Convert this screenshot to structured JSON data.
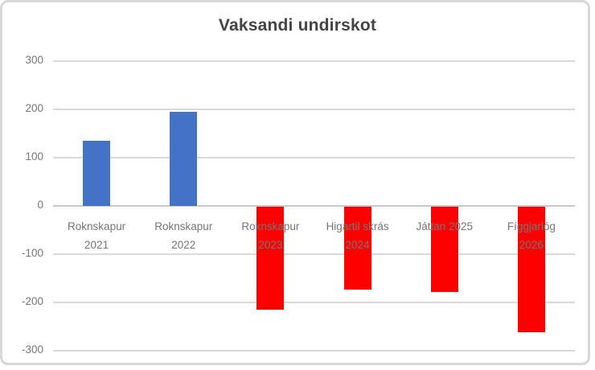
{
  "title": "Vaksandi undirskot",
  "colors": {
    "positive_bar": "#4472C4",
    "negative_bar": "#FF0000",
    "gridline": "#D9D9D9",
    "zero_axis": "#C8C8C8",
    "tick_text": "#757575",
    "title_text": "#444444",
    "frame_border": "#D7D7D7"
  },
  "chart_data": {
    "type": "bar",
    "title": "Vaksandi undirskot",
    "categories": [
      "Roknskapur 2021",
      "Roknskapur 2022",
      "Roknskapur 2023",
      "Higartil skrás 2024",
      "Játtan 2025",
      "Fíggjarlóg 2026"
    ],
    "category_lines": [
      [
        "Roknskapur",
        "2021"
      ],
      [
        "Roknskapur",
        "2022"
      ],
      [
        "Roknskapur",
        "2023"
      ],
      [
        "Higartil skrás",
        "2024"
      ],
      [
        "Játtan 2025"
      ],
      [
        "Fíggjarlóg",
        "2026"
      ]
    ],
    "values": [
      135,
      195,
      -215,
      -173,
      -178,
      -261
    ],
    "bar_colors": [
      "#4472C4",
      "#4472C4",
      "#FF0000",
      "#FF0000",
      "#FF0000",
      "#FF0000"
    ],
    "yticks": [
      300,
      200,
      100,
      0,
      -100,
      -200,
      -300
    ],
    "ylim": [
      -300,
      300
    ],
    "grid": true,
    "legend": "none",
    "xlabel": "",
    "ylabel": ""
  }
}
